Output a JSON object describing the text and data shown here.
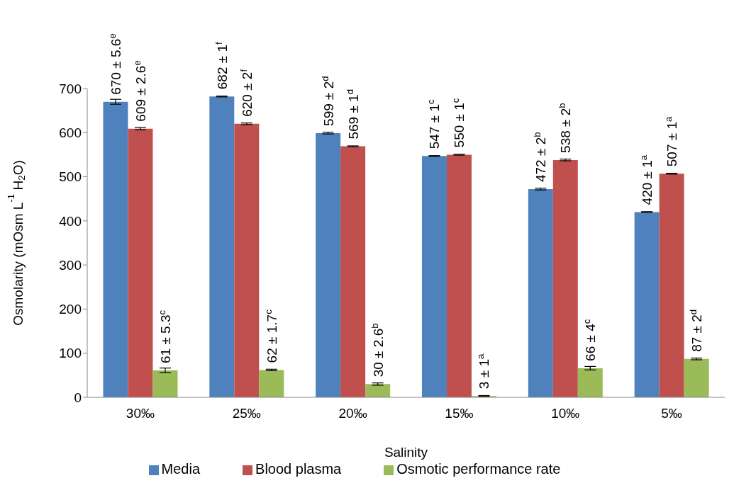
{
  "chart_data": {
    "type": "bar",
    "xlabel": "Salinity",
    "ylabel": "Osmolarity (mOsm L$^{-1}$ H$_{2}$O)",
    "categories": [
      "30‰",
      "25‰",
      "20‰",
      "15‰",
      "10‰",
      "5‰"
    ],
    "series": [
      {
        "name": "Media",
        "color": "#4f81bd",
        "values": [
          670,
          682,
          599,
          547,
          472,
          420
        ],
        "errors": [
          5.6,
          1,
          2,
          1,
          2,
          1
        ],
        "value_labels": [
          "670 ± 5.6$^{e}$",
          "682 ± 1$^{f}$",
          "599 ± 2$^{d}$",
          "547 ± 1$^{c}$",
          "472 ± 2$^{b}$",
          "420 ± 1$^{a}$"
        ]
      },
      {
        "name": "Blood plasma",
        "color": "#c0504d",
        "values": [
          609,
          620,
          569,
          550,
          538,
          507
        ],
        "errors": [
          2.6,
          2,
          1,
          1,
          2,
          1
        ],
        "value_labels": [
          "609 ± 2.6$^{e}$",
          "620 ± 2$^{f}$",
          "569 ± 1$^{d}$",
          "550 ± 1$^{c}$",
          "538 ± 2$^{b}$",
          "507 ± 1$^{a}$"
        ]
      },
      {
        "name": "Osmotic performance rate",
        "color": "#9bbb59",
        "values": [
          61,
          62,
          30,
          3,
          66,
          87
        ],
        "errors": [
          5.3,
          1.7,
          2.6,
          1,
          4,
          2
        ],
        "value_labels": [
          "61 ± 5.3$^{c}$",
          "62 ± 1.7$^{c}$",
          "30 ± 2.6$^{b}$",
          "3 ± 1$^{a}$",
          "66 ± 4$^{c}$",
          "87 ± 2$^{d}$"
        ]
      }
    ],
    "ylim": [
      0,
      700
    ],
    "yticks": [
      0,
      100,
      200,
      300,
      400,
      500,
      600,
      700
    ],
    "grid": false,
    "legend": "bottom"
  }
}
